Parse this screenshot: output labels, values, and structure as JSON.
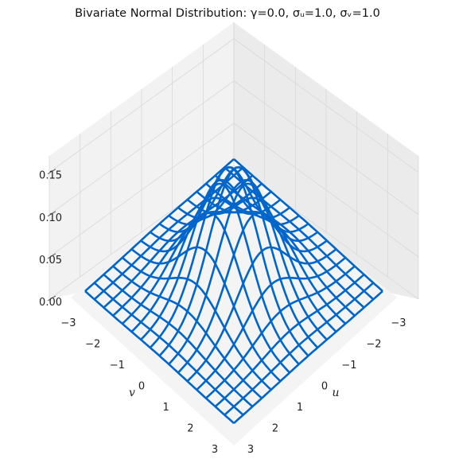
{
  "chart_data": {
    "type": "surface-3d-wireframe",
    "title": "Bivariate Normal Distribution: γ=0.0, σᵤ=1.0, σᵥ=1.0",
    "xlabel": "u",
    "ylabel": "v",
    "zlabel": "",
    "xlim": [
      -3,
      3
    ],
    "ylim": [
      -3,
      3
    ],
    "zlim": [
      0,
      0.16
    ],
    "x_ticks": [
      -3,
      -2,
      -1,
      0,
      1,
      2,
      3
    ],
    "y_ticks": [
      -3,
      -2,
      -1,
      0,
      1,
      2,
      3
    ],
    "z_ticks": [
      "0.00",
      "0.05",
      "0.10",
      "0.15"
    ],
    "parameters": {
      "gamma": 0.0,
      "sigma_u": 1.0,
      "sigma_v": 1.0
    },
    "function": "bivariate normal pdf: exp(-(u^2 - 2*gamma*u*v + v^2)/(2*(1-gamma^2))) / (2*pi*sqrt(1-gamma^2))",
    "peak_value": 0.159,
    "grid": true,
    "colors": {
      "wire": "#0066cc",
      "pane": "#f2f2f2",
      "pane_side": "#ebebeb",
      "gridline": "#d8d8d8"
    }
  }
}
